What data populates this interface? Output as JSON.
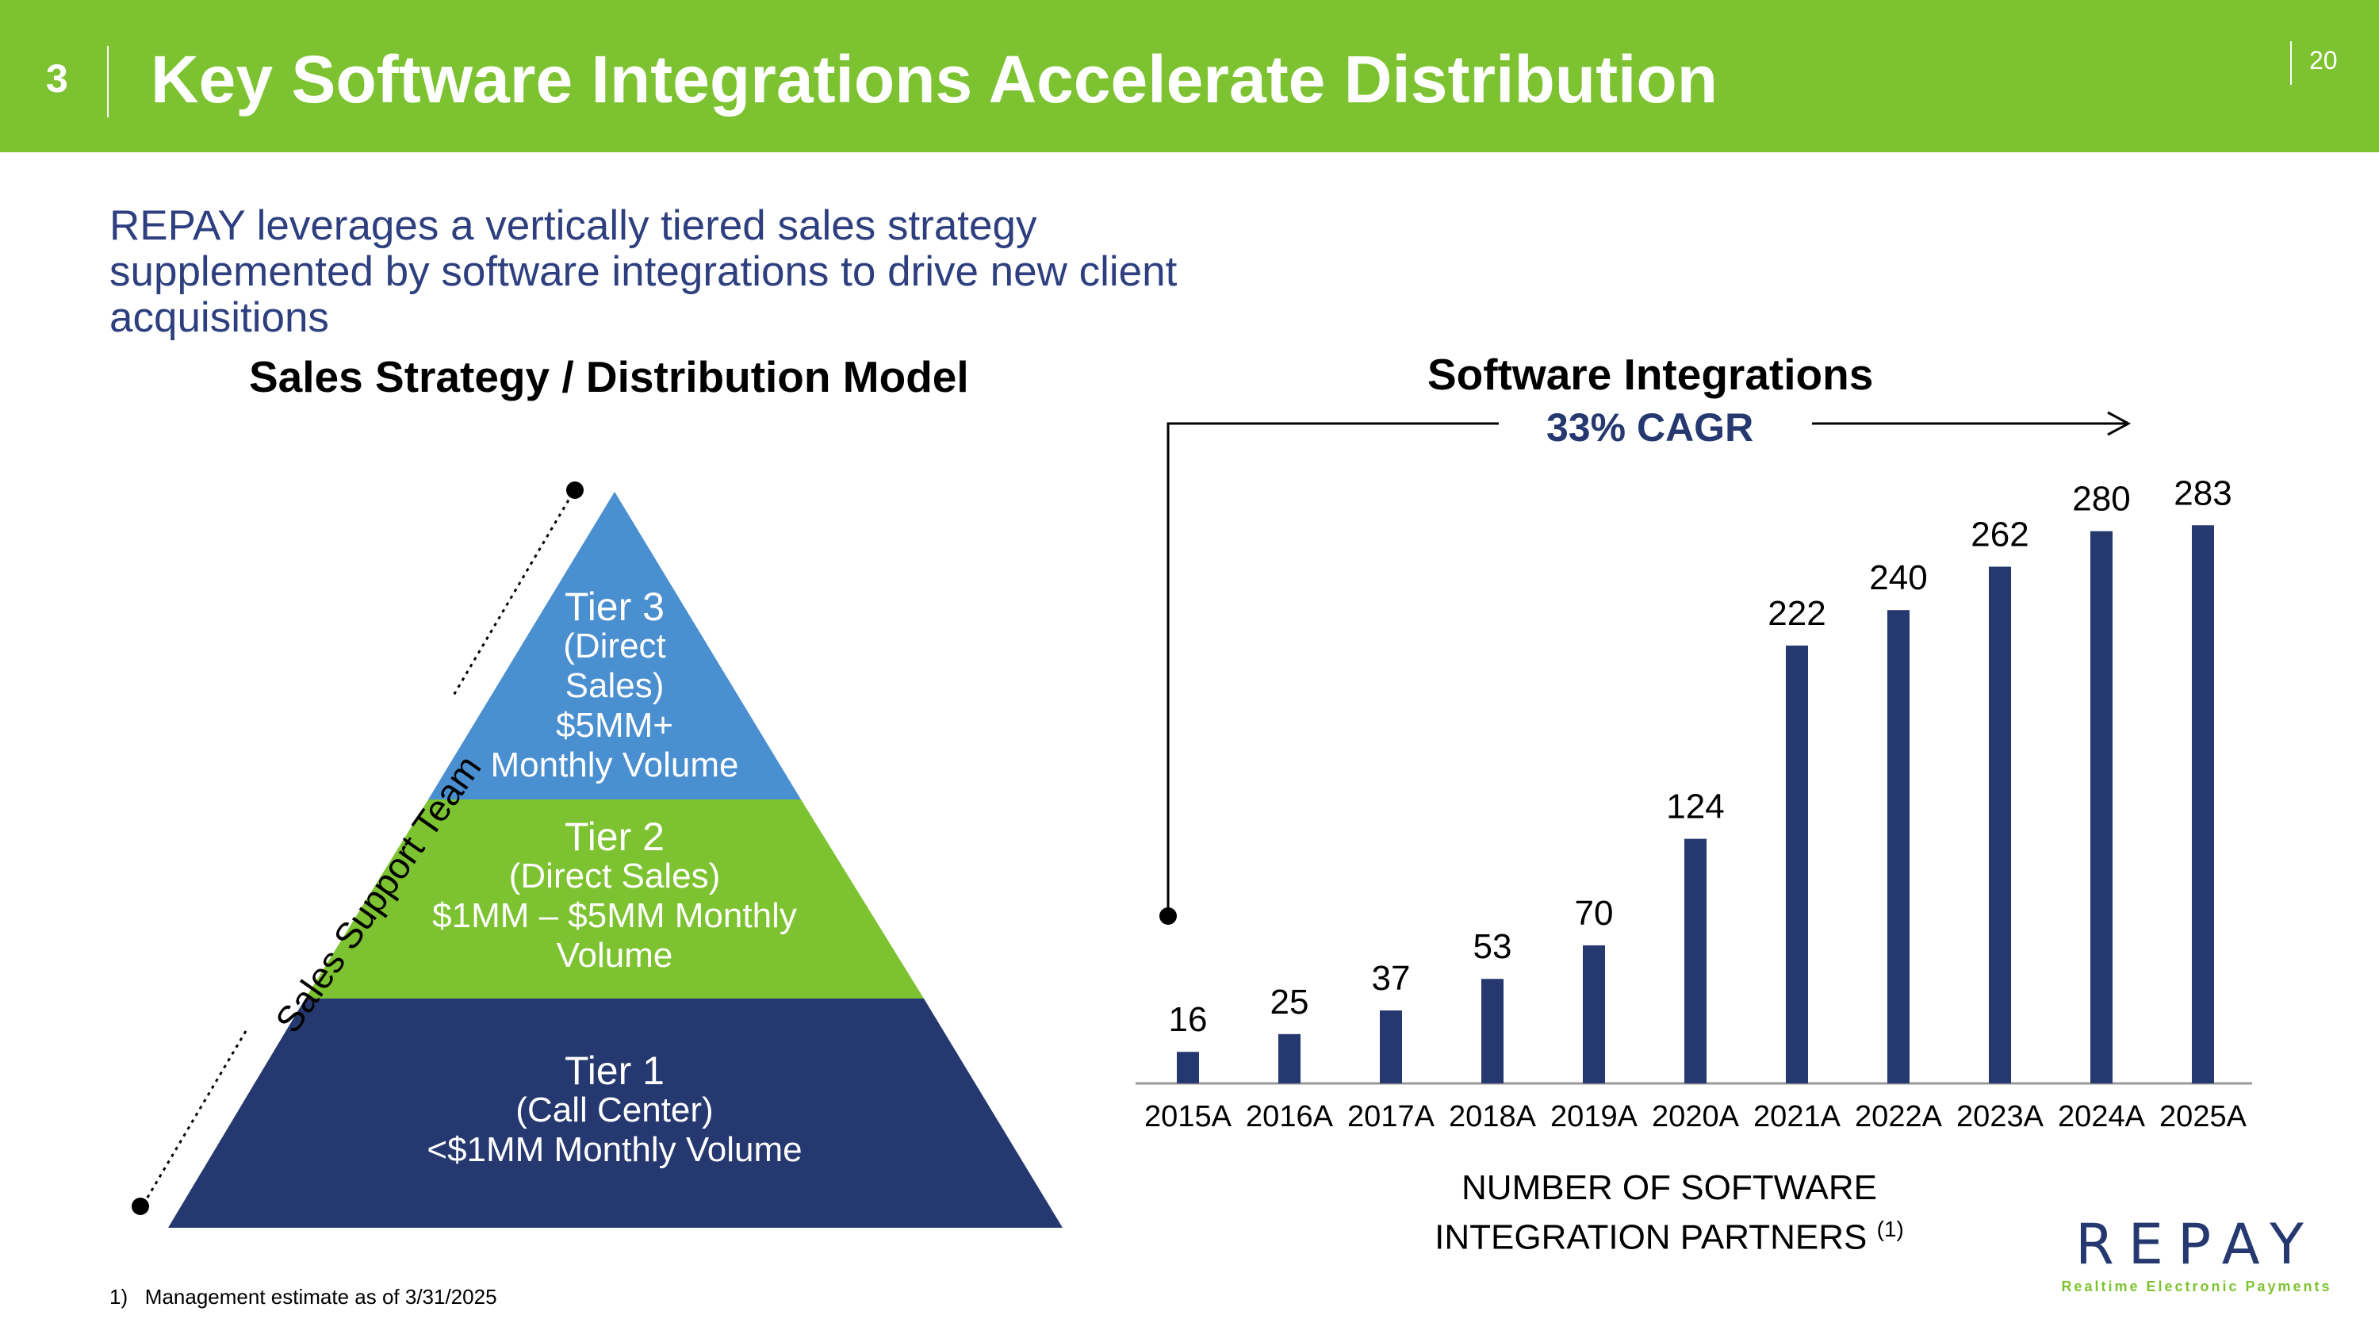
{
  "header": {
    "section_number": "3",
    "title": "Key Software Integrations Accelerate Distribution",
    "page_number": "20"
  },
  "subtitle": "REPAY leverages a vertically tiered sales strategy supplemented by software integrations to drive new client acquisitions",
  "sales_model": {
    "heading": "Sales Strategy / Distribution Model",
    "side_label": "Sales Support Team",
    "tiers": [
      {
        "name": "Tier 3",
        "lines": [
          "(Direct",
          "Sales)",
          "$5MM+",
          "Monthly Volume"
        ],
        "color": "#4a8fd0"
      },
      {
        "name": "Tier 2",
        "lines": [
          "(Direct Sales)",
          "$1MM – $5MM Monthly",
          "Volume"
        ],
        "color": "#7dc331"
      },
      {
        "name": "Tier 1",
        "lines": [
          "(Call Center)",
          "<$1MM Monthly Volume"
        ],
        "color": "#25386f"
      }
    ]
  },
  "chart_data": {
    "type": "bar",
    "title": "Software Integrations",
    "annotation": "33% CAGR",
    "categories": [
      "2015A",
      "2016A",
      "2017A",
      "2018A",
      "2019A",
      "2020A",
      "2021A",
      "2022A",
      "2023A",
      "2024A",
      "2025A"
    ],
    "values": [
      16,
      25,
      37,
      53,
      70,
      124,
      222,
      240,
      262,
      280,
      283
    ],
    "xlabel_lines": [
      "NUMBER OF SOFTWARE",
      "INTEGRATION PARTNERS"
    ],
    "xlabel_footnote": "(1)",
    "ylim": [
      0,
      300
    ],
    "grid": false,
    "bar_color": "#25386f"
  },
  "footnote": {
    "marker": "1)",
    "text": "Management estimate as of 3/31/2025"
  },
  "logo": {
    "word": "REPAY",
    "tagline": "Realtime Electronic Payments"
  },
  "colors": {
    "header_green": "#7dc331",
    "navy": "#25386f",
    "blue": "#4a8fd0"
  }
}
